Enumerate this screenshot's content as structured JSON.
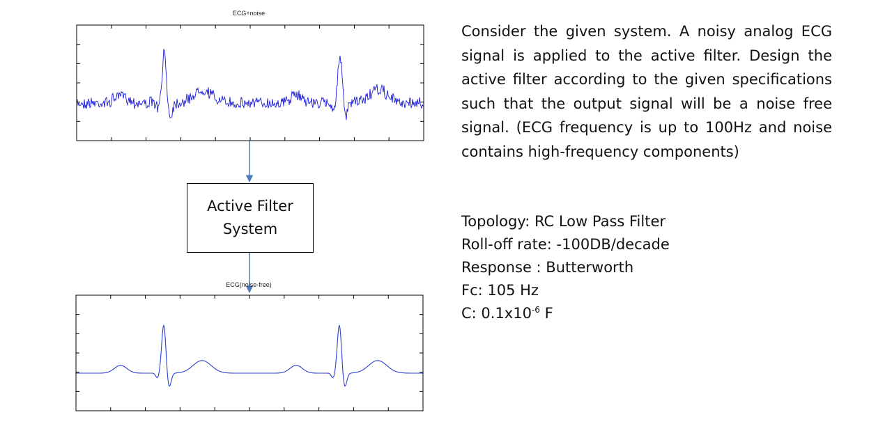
{
  "plots": {
    "noisy": {
      "title": "ECG+noise",
      "color": "#1a1adb"
    },
    "clean": {
      "title": "ECG(noise-free)",
      "color": "#2a3fd0"
    }
  },
  "filter_box": {
    "line1": "Active Filter",
    "line2": "System"
  },
  "problem_text": "Consider the given system. A noisy analog ECG signal is applied to the active filter. Design the active filter according to the given specifications such that the output signal will be a noise free signal. (ECG frequency is up to 100Hz and noise contains high-frequency components)",
  "specs": {
    "topology": "Topology: RC Low Pass Filter",
    "rolloff": "Roll-off rate: -100DB/decade",
    "response": "Response : Butterworth",
    "fc": "Fc: 105 Hz",
    "c_prefix": "C: 0.1x10",
    "c_exp": "-6",
    "c_suffix": " F"
  },
  "colors": {
    "arrow": "#4f7bb5",
    "axes": "#000000"
  }
}
